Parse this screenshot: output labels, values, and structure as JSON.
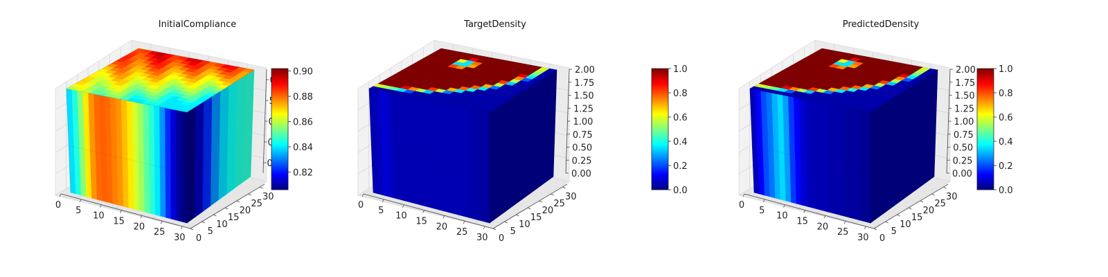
{
  "figure": {
    "background": "#ffffff"
  },
  "colormap": {
    "name": "jet",
    "stops": [
      "#00007f",
      "#0000ff",
      "#007fff",
      "#00ffff",
      "#7fff7f",
      "#ffff00",
      "#ff7f00",
      "#ff0000",
      "#7f0000"
    ]
  },
  "chart_data": [
    {
      "type": "voxel-3d",
      "title": "InitialCompliance",
      "x_ticks": [
        "0",
        "5",
        "10",
        "15",
        "20",
        "25",
        "30"
      ],
      "y_ticks": [
        "0",
        "5",
        "10",
        "15",
        "20",
        "25",
        "30"
      ],
      "z_ticks": [],
      "xlim": [
        0,
        32
      ],
      "ylim": [
        0,
        32
      ],
      "grid": true,
      "colorbar": {
        "ticks": [
          "0.82",
          "0.84",
          "0.86",
          "0.88",
          "0.90"
        ],
        "range": [
          0.806,
          0.902
        ],
        "overlapping_tick_fragments": [
          "0",
          "5",
          "0",
          "0",
          "0"
        ]
      },
      "front_face_profile": [
        0.839,
        0.845,
        0.855,
        0.868,
        0.876,
        0.88,
        0.881,
        0.88,
        0.878,
        0.876,
        0.872,
        0.868,
        0.862,
        0.857,
        0.851,
        0.846,
        0.84,
        0.832,
        0.822,
        0.814,
        0.809,
        0.806
      ],
      "right_face_profile": [
        0.806,
        0.812,
        0.822,
        0.832,
        0.839,
        0.843,
        0.845,
        0.846
      ],
      "top_face": "mixed, high (~0.89) at back, lower (~0.84) toward front right"
    },
    {
      "type": "voxel-3d",
      "title": "TargetDensity",
      "x_ticks": [
        "0",
        "5",
        "10",
        "15",
        "20",
        "25",
        "30"
      ],
      "y_ticks": [
        "0",
        "5",
        "10",
        "15",
        "20",
        "25",
        "30"
      ],
      "z_ticks": [
        "0.00",
        "0.25",
        "0.50",
        "0.75",
        "1.00",
        "1.25",
        "1.50",
        "1.75",
        "2.00"
      ],
      "xlim": [
        0,
        32
      ],
      "ylim": [
        0,
        32
      ],
      "zlim": [
        0,
        2
      ],
      "grid": true,
      "colorbar": {
        "ticks": [
          "0.0",
          "0.2",
          "0.4",
          "0.6",
          "0.8",
          "1.0"
        ],
        "range": [
          0,
          1
        ]
      },
      "front_face_profile": [
        0.05,
        0.06,
        0.08,
        0.07,
        0.05,
        0.05,
        0.05,
        0.05,
        0.05,
        0.05,
        0.05,
        0.05,
        0.05,
        0.05,
        0.05,
        0.05,
        0.05,
        0.05,
        0.04,
        0.04,
        0.03,
        0.03
      ],
      "right_face_profile": [
        0.02,
        0.02,
        0.02,
        0.02,
        0.02,
        0.02,
        0.02,
        0.02
      ],
      "top_face": "quarter-disc of density 1.0 with low-density hole near back corner"
    },
    {
      "type": "voxel-3d",
      "title": "PredictedDensity",
      "x_ticks": [
        "0",
        "5",
        "10",
        "15",
        "20",
        "25",
        "30"
      ],
      "y_ticks": [
        "0",
        "5",
        "10",
        "15",
        "20",
        "25",
        "30"
      ],
      "z_ticks": [
        "0.00",
        "0.25",
        "0.50",
        "0.75",
        "1.00",
        "1.25",
        "1.50",
        "1.75",
        "2.00"
      ],
      "xlim": [
        0,
        32
      ],
      "ylim": [
        0,
        32
      ],
      "zlim": [
        0,
        2
      ],
      "grid": true,
      "colorbar": {
        "ticks": [
          "0.0",
          "0.2",
          "0.4",
          "0.6",
          "0.8",
          "1.0"
        ],
        "range": [
          0,
          1
        ]
      },
      "front_face_profile": [
        0.06,
        0.12,
        0.2,
        0.24,
        0.3,
        0.34,
        0.28,
        0.18,
        0.12,
        0.08,
        0.06,
        0.05,
        0.05,
        0.05,
        0.04,
        0.04,
        0.04,
        0.03,
        0.03,
        0.03,
        0.02,
        0.02
      ],
      "right_face_profile": [
        0.02,
        0.02,
        0.02,
        0.02,
        0.02,
        0.02,
        0.02,
        0.02
      ],
      "top_face": "quarter-disc of density 1.0 with low-density hole near back corner"
    }
  ]
}
